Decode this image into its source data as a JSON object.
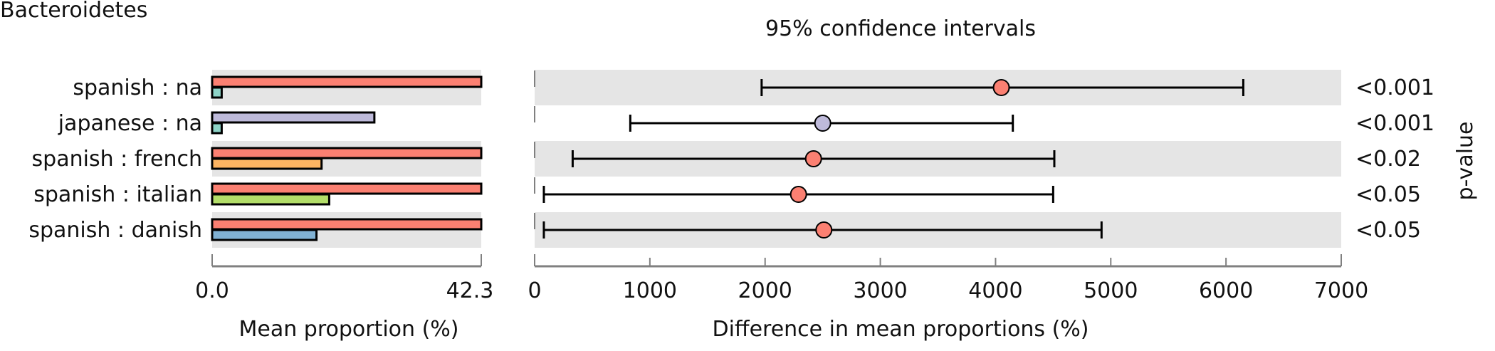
{
  "chart_data": [
    {
      "type": "bar",
      "title": "Bacteroidetes",
      "xlabel": "Mean proportion (%)",
      "xlim": [
        0.0,
        42.3
      ],
      "xticks": [
        "0.0",
        "42.3"
      ],
      "categories": [
        "spanish : na",
        "japanese : na",
        "spanish : french",
        "spanish : italian",
        "spanish : danish"
      ],
      "bars": [
        {
          "row": "spanish : na",
          "group1": "spanish",
          "value1": 42.3,
          "group2": "na",
          "value2": 1.5
        },
        {
          "row": "japanese : na",
          "group1": "japanese",
          "value1": 25.5,
          "group2": "na",
          "value2": 1.5
        },
        {
          "row": "spanish : french",
          "group1": "spanish",
          "value1": 42.3,
          "group2": "french",
          "value2": 17.2
        },
        {
          "row": "spanish : italian",
          "group1": "spanish",
          "value1": 42.3,
          "group2": "italian",
          "value2": 18.4
        },
        {
          "row": "spanish : danish",
          "group1": "spanish",
          "value1": 42.3,
          "group2": "danish",
          "value2": 16.4
        }
      ]
    },
    {
      "type": "scatter",
      "title": "95% confidence intervals",
      "xlabel": "Difference in mean proportions (%)",
      "right_label": "p-value",
      "xlim": [
        0,
        7000
      ],
      "xticks": [
        "0",
        "1000",
        "2000",
        "3000",
        "4000",
        "5000",
        "6000",
        "7000"
      ],
      "rows": [
        {
          "label": "spanish : na",
          "estimate": 4050,
          "ci_low": 1970,
          "ci_high": 6150,
          "pvalue": "<0.001",
          "marker_group": "spanish"
        },
        {
          "label": "japanese : na",
          "estimate": 2500,
          "ci_low": 830,
          "ci_high": 4150,
          "pvalue": "<0.001",
          "marker_group": "japanese"
        },
        {
          "label": "spanish : french",
          "estimate": 2420,
          "ci_low": 330,
          "ci_high": 4510,
          "pvalue": "<0.02",
          "marker_group": "spanish"
        },
        {
          "label": "spanish : italian",
          "estimate": 2290,
          "ci_low": 80,
          "ci_high": 4500,
          "pvalue": "<0.05",
          "marker_group": "spanish"
        },
        {
          "label": "spanish : danish",
          "estimate": 2510,
          "ci_low": 80,
          "ci_high": 4920,
          "pvalue": "<0.05",
          "marker_group": "spanish"
        }
      ]
    }
  ],
  "colors": {
    "spanish": "#fb8072",
    "japanese": "#bebada",
    "na": "#8dd3c7",
    "french": "#fdb462",
    "italian": "#b3de69",
    "danish": "#80b1d3",
    "stripe": "#e5e5e5",
    "axis": "#808080"
  }
}
